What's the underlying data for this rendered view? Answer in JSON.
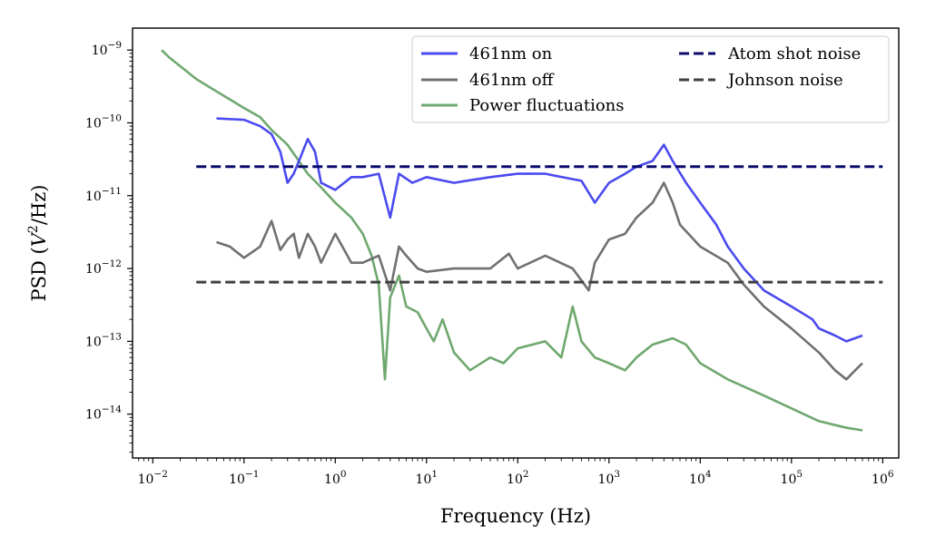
{
  "chart_data": {
    "type": "line",
    "xscale": "log",
    "yscale": "log",
    "xlabel": "Frequency (Hz)",
    "ylabel": "PSD (V²/Hz)",
    "ylabel_parts": {
      "prefix": "PSD (",
      "var": "V",
      "sup": "2",
      "suffix": "/Hz)"
    },
    "xlim": [
      0.006,
      1500000
    ],
    "ylim": [
      2.5e-15,
      2e-09
    ],
    "xticks": [
      {
        "value": 0.01,
        "base": "10",
        "exp": "−2"
      },
      {
        "value": 0.1,
        "base": "10",
        "exp": "−1"
      },
      {
        "value": 1,
        "base": "10",
        "exp": "0"
      },
      {
        "value": 10,
        "base": "10",
        "exp": "1"
      },
      {
        "value": 100,
        "base": "10",
        "exp": "2"
      },
      {
        "value": 1000,
        "base": "10",
        "exp": "3"
      },
      {
        "value": 10000,
        "base": "10",
        "exp": "4"
      },
      {
        "value": 100000,
        "base": "10",
        "exp": "5"
      },
      {
        "value": 1000000,
        "base": "10",
        "exp": "6"
      }
    ],
    "yticks": [
      {
        "value": 1e-14,
        "base": "10",
        "exp": "−14"
      },
      {
        "value": 1e-13,
        "base": "10",
        "exp": "−13"
      },
      {
        "value": 1e-12,
        "base": "10",
        "exp": "−12"
      },
      {
        "value": 1e-11,
        "base": "10",
        "exp": "−11"
      },
      {
        "value": 1e-10,
        "base": "10",
        "exp": "−10"
      },
      {
        "value": 1e-09,
        "base": "10",
        "exp": "−9"
      }
    ],
    "series": [
      {
        "name": "Power fluctuations",
        "color": "#6fa86f",
        "points": [
          [
            0.0125,
            1e-09
          ],
          [
            0.015,
            8e-10
          ],
          [
            0.02,
            6e-10
          ],
          [
            0.03,
            4e-10
          ],
          [
            0.05,
            2.7e-10
          ],
          [
            0.07,
            2.1e-10
          ],
          [
            0.1,
            1.6e-10
          ],
          [
            0.15,
            1.2e-10
          ],
          [
            0.2,
            8e-11
          ],
          [
            0.3,
            5e-11
          ],
          [
            0.5,
            2e-11
          ],
          [
            0.7,
            1.3e-11
          ],
          [
            1.0,
            8e-12
          ],
          [
            1.5,
            5e-12
          ],
          [
            2.0,
            3e-12
          ],
          [
            2.5,
            1.5e-12
          ],
          [
            3.0,
            6e-13
          ],
          [
            3.5,
            3e-14
          ],
          [
            4.0,
            4e-13
          ],
          [
            5.0,
            8e-13
          ],
          [
            6.0,
            3e-13
          ],
          [
            8.0,
            2.5e-13
          ],
          [
            10,
            1.5e-13
          ],
          [
            12,
            1e-13
          ],
          [
            15,
            2e-13
          ],
          [
            20,
            7e-14
          ],
          [
            30,
            4e-14
          ],
          [
            50,
            6e-14
          ],
          [
            70,
            5e-14
          ],
          [
            100,
            8e-14
          ],
          [
            200,
            1e-13
          ],
          [
            300,
            6e-14
          ],
          [
            400,
            3e-13
          ],
          [
            500,
            1e-13
          ],
          [
            700,
            6e-14
          ],
          [
            1000,
            5e-14
          ],
          [
            1500,
            4e-14
          ],
          [
            2000,
            6e-14
          ],
          [
            3000,
            9e-14
          ],
          [
            5000,
            1.1e-13
          ],
          [
            7000,
            9e-14
          ],
          [
            10000,
            5e-14
          ],
          [
            20000,
            3e-14
          ],
          [
            50000,
            1.8e-14
          ],
          [
            100000,
            1.2e-14
          ],
          [
            200000,
            8e-15
          ],
          [
            400000,
            6.5e-15
          ],
          [
            600000,
            6e-15
          ]
        ]
      },
      {
        "name": "461nm off",
        "color": "#707070",
        "points": [
          [
            0.05,
            2.3e-12
          ],
          [
            0.07,
            2e-12
          ],
          [
            0.1,
            1.4e-12
          ],
          [
            0.15,
            2e-12
          ],
          [
            0.2,
            4.5e-12
          ],
          [
            0.25,
            1.8e-12
          ],
          [
            0.3,
            2.5e-12
          ],
          [
            0.35,
            3e-12
          ],
          [
            0.4,
            1.4e-12
          ],
          [
            0.5,
            3e-12
          ],
          [
            0.6,
            2e-12
          ],
          [
            0.7,
            1.2e-12
          ],
          [
            1.0,
            3e-12
          ],
          [
            1.5,
            1.2e-12
          ],
          [
            2.0,
            1.2e-12
          ],
          [
            3.0,
            1.5e-12
          ],
          [
            4.0,
            5e-13
          ],
          [
            5.0,
            2e-12
          ],
          [
            6.0,
            1.5e-12
          ],
          [
            8.0,
            1e-12
          ],
          [
            10,
            9e-13
          ],
          [
            20,
            1e-12
          ],
          [
            50,
            1e-12
          ],
          [
            80,
            1.6e-12
          ],
          [
            100,
            1e-12
          ],
          [
            200,
            1.5e-12
          ],
          [
            400,
            1e-12
          ],
          [
            600,
            5e-13
          ],
          [
            700,
            1.2e-12
          ],
          [
            1000,
            2.5e-12
          ],
          [
            1500,
            3e-12
          ],
          [
            2000,
            5e-12
          ],
          [
            3000,
            8e-12
          ],
          [
            4000,
            1.5e-11
          ],
          [
            5000,
            8e-12
          ],
          [
            6000,
            4e-12
          ],
          [
            10000,
            2e-12
          ],
          [
            20000,
            1.2e-12
          ],
          [
            30000,
            6e-13
          ],
          [
            50000,
            3e-13
          ],
          [
            100000,
            1.5e-13
          ],
          [
            200000,
            7e-14
          ],
          [
            300000,
            4e-14
          ],
          [
            400000,
            3e-14
          ],
          [
            500000,
            4e-14
          ],
          [
            600000,
            5e-14
          ]
        ]
      },
      {
        "name": "461nm on",
        "color": "#4a4af0",
        "points": [
          [
            0.05,
            1.15e-10
          ],
          [
            0.1,
            1.1e-10
          ],
          [
            0.15,
            9e-11
          ],
          [
            0.2,
            7e-11
          ],
          [
            0.25,
            4e-11
          ],
          [
            0.3,
            1.5e-11
          ],
          [
            0.35,
            2e-11
          ],
          [
            0.4,
            3e-11
          ],
          [
            0.5,
            6e-11
          ],
          [
            0.6,
            4e-11
          ],
          [
            0.7,
            1.5e-11
          ],
          [
            1.0,
            1.2e-11
          ],
          [
            1.5,
            1.8e-11
          ],
          [
            2.0,
            1.8e-11
          ],
          [
            3.0,
            2e-11
          ],
          [
            4.0,
            5e-12
          ],
          [
            5.0,
            2e-11
          ],
          [
            7.0,
            1.5e-11
          ],
          [
            10,
            1.8e-11
          ],
          [
            20,
            1.5e-11
          ],
          [
            50,
            1.8e-11
          ],
          [
            100,
            2e-11
          ],
          [
            200,
            2e-11
          ],
          [
            500,
            1.6e-11
          ],
          [
            700,
            8e-12
          ],
          [
            1000,
            1.5e-11
          ],
          [
            1500,
            2e-11
          ],
          [
            2000,
            2.5e-11
          ],
          [
            3000,
            3e-11
          ],
          [
            4000,
            5e-11
          ],
          [
            5000,
            3e-11
          ],
          [
            7000,
            1.5e-11
          ],
          [
            10000,
            8e-12
          ],
          [
            15000,
            4e-12
          ],
          [
            20000,
            2e-12
          ],
          [
            30000,
            1e-12
          ],
          [
            50000,
            5e-13
          ],
          [
            100000,
            3e-13
          ],
          [
            170000,
            2e-13
          ],
          [
            200000,
            1.5e-13
          ],
          [
            300000,
            1.2e-13
          ],
          [
            400000,
            1e-13
          ],
          [
            600000,
            1.2e-13
          ]
        ]
      },
      {
        "name": "Atom shot noise",
        "color": "#0b0b6e",
        "dashed": true,
        "points": [
          [
            0.03,
            2.5e-11
          ],
          [
            1000000,
            2.5e-11
          ]
        ]
      },
      {
        "name": "Johnson noise",
        "color": "#404040",
        "dashed": true,
        "points": [
          [
            0.03,
            6.5e-13
          ],
          [
            1000000,
            6.5e-13
          ]
        ]
      }
    ],
    "legend": {
      "placement": "top-right",
      "items": [
        {
          "label": "461nm on",
          "color": "#4a4af0",
          "dashed": false
        },
        {
          "label": "461nm off",
          "color": "#707070",
          "dashed": false
        },
        {
          "label": "Power fluctuations",
          "color": "#6fa86f",
          "dashed": false
        },
        {
          "label": "Atom shot noise",
          "color": "#0b0b6e",
          "dashed": true
        },
        {
          "label": "Johnson noise",
          "color": "#404040",
          "dashed": true
        }
      ]
    }
  }
}
